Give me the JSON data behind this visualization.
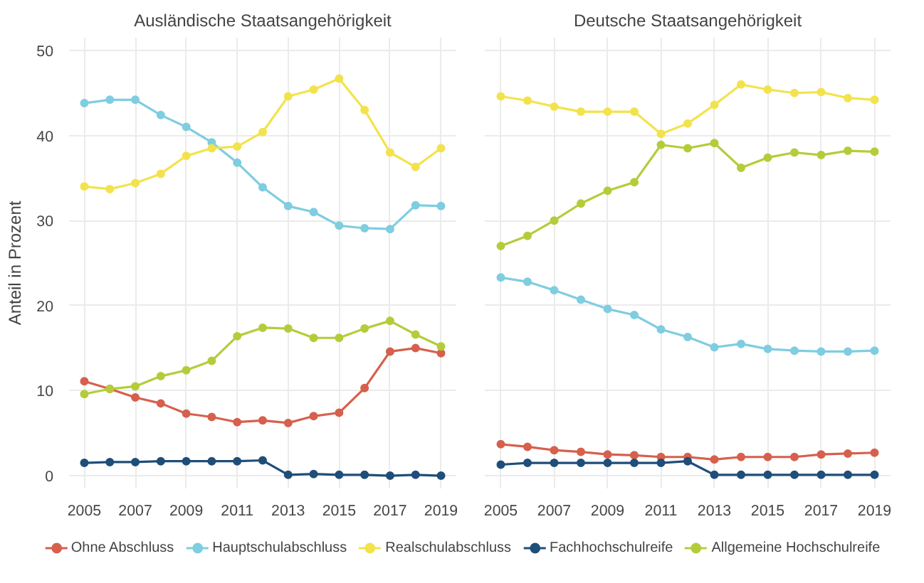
{
  "chart_data": [
    {
      "type": "line",
      "title": "Ausländische Staatsangehörigkeit",
      "ylabel": "Anteil in Prozent",
      "x": [
        2005,
        2006,
        2007,
        2008,
        2009,
        2010,
        2011,
        2012,
        2013,
        2014,
        2015,
        2016,
        2017,
        2018,
        2019
      ],
      "xlim": [
        2004.4,
        2019.6
      ],
      "xticks": [
        2005,
        2007,
        2009,
        2011,
        2013,
        2015,
        2017,
        2019
      ],
      "ylim": [
        -1.5,
        51.5
      ],
      "yticks": [
        0,
        10,
        20,
        30,
        40,
        50
      ],
      "grid": true,
      "legend": "bottom",
      "marker": "circle",
      "line_style": "solid",
      "series": [
        {
          "name": "Ohne Abschluss",
          "color": "#d6604d",
          "values": [
            11.1,
            10.2,
            9.2,
            8.5,
            7.3,
            6.9,
            6.3,
            6.5,
            6.2,
            7.0,
            7.4,
            10.3,
            14.6,
            15.0,
            14.4
          ]
        },
        {
          "name": "Hauptschulabschluss",
          "color": "#7fcde0",
          "values": [
            43.8,
            44.2,
            44.2,
            42.4,
            41.0,
            39.2,
            36.8,
            33.9,
            31.7,
            31.0,
            29.4,
            29.1,
            29.0,
            31.8,
            31.7
          ]
        },
        {
          "name": "Realschulabschluss",
          "color": "#f2e34c",
          "values": [
            34.0,
            33.7,
            34.4,
            35.5,
            37.6,
            38.5,
            38.7,
            40.4,
            44.6,
            45.4,
            46.7,
            43.0,
            38.0,
            36.3,
            38.5
          ]
        },
        {
          "name": "Fachhochschulreife",
          "color": "#1f4e79",
          "values": [
            1.5,
            1.6,
            1.6,
            1.7,
            1.7,
            1.7,
            1.7,
            1.8,
            0.1,
            0.2,
            0.1,
            0.1,
            0.0,
            0.1,
            0.0
          ]
        },
        {
          "name": "Allgemeine Hochschulreife",
          "color": "#b5cc3a",
          "values": [
            9.6,
            10.2,
            10.5,
            11.7,
            12.4,
            13.5,
            16.4,
            17.4,
            17.3,
            16.2,
            16.2,
            17.3,
            18.2,
            16.6,
            15.2
          ]
        }
      ]
    },
    {
      "type": "line",
      "title": "Deutsche Staatsangehörigkeit",
      "x": [
        2005,
        2006,
        2007,
        2008,
        2009,
        2010,
        2011,
        2012,
        2013,
        2014,
        2015,
        2016,
        2017,
        2018,
        2019
      ],
      "xlim": [
        2004.4,
        2019.6
      ],
      "xticks": [
        2005,
        2007,
        2009,
        2011,
        2013,
        2015,
        2017,
        2019
      ],
      "ylim": [
        -1.5,
        51.5
      ],
      "yticks": [
        0,
        10,
        20,
        30,
        40,
        50
      ],
      "grid": true,
      "tick_labels": "x",
      "marker": "circle",
      "line_style": "solid",
      "series": [
        {
          "color": "#d6604d",
          "values": [
            3.7,
            3.4,
            3.0,
            2.8,
            2.5,
            2.4,
            2.2,
            2.2,
            1.9,
            2.2,
            2.2,
            2.2,
            2.5,
            2.6,
            2.7
          ]
        },
        {
          "color": "#7fcde0",
          "values": [
            23.3,
            22.8,
            21.8,
            20.7,
            19.6,
            18.9,
            17.2,
            16.3,
            15.1,
            15.5,
            14.9,
            14.7,
            14.6,
            14.6,
            14.7
          ]
        },
        {
          "color": "#f2e34c",
          "values": [
            44.6,
            44.1,
            43.4,
            42.8,
            42.8,
            42.8,
            40.2,
            41.4,
            43.6,
            46.0,
            45.4,
            45.0,
            45.1,
            44.4,
            44.2
          ]
        },
        {
          "color": "#1f4e79",
          "values": [
            1.3,
            1.5,
            1.5,
            1.5,
            1.5,
            1.5,
            1.5,
            1.7,
            0.1,
            0.1,
            0.1,
            0.1,
            0.1,
            0.1,
            0.1
          ]
        },
        {
          "color": "#b5cc3a",
          "values": [
            27.0,
            28.2,
            30.0,
            32.0,
            33.5,
            34.5,
            38.9,
            38.5,
            39.1,
            36.2,
            37.4,
            38.0,
            37.7,
            38.2,
            38.1
          ]
        }
      ]
    }
  ]
}
